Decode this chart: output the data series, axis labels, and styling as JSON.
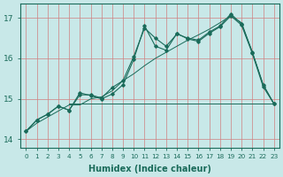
{
  "background_color": "#c8e8e8",
  "grid_color": "#e8a0a0",
  "line_color": "#1a6b5a",
  "xlabel": "Humidex (Indice chaleur)",
  "xlim": [
    -0.5,
    23.5
  ],
  "ylim": [
    13.8,
    17.35
  ],
  "yticks": [
    14,
    15,
    16,
    17
  ],
  "xticks": [
    0,
    1,
    2,
    3,
    4,
    5,
    6,
    7,
    8,
    9,
    10,
    11,
    12,
    13,
    14,
    15,
    16,
    17,
    18,
    19,
    20,
    21,
    22,
    23
  ],
  "line_upper": [
    14.2,
    14.48,
    14.62,
    14.82,
    14.72,
    15.1,
    15.1,
    15.02,
    15.28,
    15.45,
    16.05,
    16.75,
    16.5,
    16.3,
    16.6,
    16.5,
    16.45,
    16.65,
    16.8,
    17.1,
    16.85,
    16.15,
    15.35,
    14.88
  ],
  "line_lower": [
    14.2,
    14.48,
    14.62,
    14.82,
    14.72,
    15.15,
    15.08,
    15.0,
    15.12,
    15.35,
    15.98,
    16.8,
    16.3,
    16.2,
    16.62,
    16.48,
    16.42,
    16.62,
    16.78,
    17.05,
    16.82,
    16.12,
    15.3,
    14.88
  ],
  "line_flat": [
    14.2,
    14.48,
    14.62,
    14.82,
    14.88,
    14.88,
    14.88,
    14.88,
    14.88,
    14.88,
    14.88,
    14.88,
    14.88,
    14.88,
    14.88,
    14.88,
    14.88,
    14.88,
    14.88,
    14.88,
    14.88,
    14.88,
    14.88,
    14.88
  ],
  "line_trend": [
    14.2,
    14.4,
    14.55,
    14.7,
    14.85,
    14.85,
    15.0,
    15.05,
    15.2,
    15.45,
    15.62,
    15.82,
    16.0,
    16.15,
    16.3,
    16.45,
    16.58,
    16.72,
    16.88,
    17.05,
    16.88,
    16.15,
    15.35,
    14.88
  ]
}
